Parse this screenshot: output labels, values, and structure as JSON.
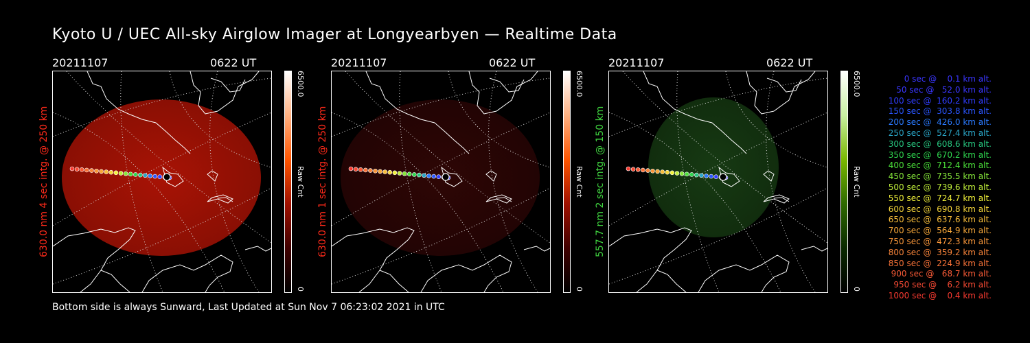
{
  "title": "Kyoto U / UEC All-sky Airglow Imager at Longyearbyen — Realtime Data",
  "footer": "Bottom side is always Sunward, Last Updated at Sun Nov  7 06:23:02 2021 in UTC",
  "panels": [
    {
      "date": "20211107",
      "time": "0622 UT",
      "label": "630.0 nm 4 sec intg. @ 250 km",
      "label_color": "#ff2a1a",
      "cbar_max": "6500.0",
      "cbar_min": "0",
      "cbar_unit": "Raw Cnt",
      "glow": "#a81305",
      "glow_edge": "#8a0f04",
      "scheme": "red"
    },
    {
      "date": "20211107",
      "time": "0622 UT",
      "label": "630.0 nm 1 sec intg. @ 250 km",
      "label_color": "#ff2a1a",
      "cbar_max": "6500.0",
      "cbar_min": "0",
      "cbar_unit": "Raw Cnt",
      "glow": "#2e0605",
      "glow_edge": "#220404",
      "scheme": "red"
    },
    {
      "date": "20211107",
      "time": "0622 UT",
      "label": "557.7 nm 2 sec intg. @ 150 km",
      "label_color": "#3fd43f",
      "cbar_max": "6500.0",
      "cbar_min": "0",
      "cbar_unit": "Raw Cnt",
      "glow": "#173a13",
      "glow_edge": "#112d0e",
      "scheme": "green"
    }
  ],
  "legend": [
    {
      "text": "0 sec @    0.1 km alt.",
      "color": "#3a36ff"
    },
    {
      "text": "50 sec @   52.0 km alt.",
      "color": "#3a36ff"
    },
    {
      "text": "100 sec @  160.2 km alt.",
      "color": "#2f3dff"
    },
    {
      "text": "150 sec @  303.8 km alt.",
      "color": "#2a55ff"
    },
    {
      "text": "200 sec @  426.0 km alt.",
      "color": "#2a7aff"
    },
    {
      "text": "250 sec @  527.4 km alt.",
      "color": "#2aa6c8"
    },
    {
      "text": "300 sec @  608.6 km alt.",
      "color": "#27c880"
    },
    {
      "text": "350 sec @  670.2 km alt.",
      "color": "#2fd64f"
    },
    {
      "text": "400 sec @  712.4 km alt.",
      "color": "#4be03a"
    },
    {
      "text": "450 sec @  735.5 km alt.",
      "color": "#86e83a"
    },
    {
      "text": "500 sec @  739.6 km alt.",
      "color": "#c0ee3a"
    },
    {
      "text": "550 sec @  724.7 km alt.",
      "color": "#f2f23a"
    },
    {
      "text": "600 sec @  690.8 km alt.",
      "color": "#f6d63a"
    },
    {
      "text": "650 sec @  637.6 km alt.",
      "color": "#f8bd3a"
    },
    {
      "text": "700 sec @  564.9 km alt.",
      "color": "#f8a83a"
    },
    {
      "text": "750 sec @  472.3 km alt.",
      "color": "#f8963a"
    },
    {
      "text": "800 sec @  359.2 km alt.",
      "color": "#f8843a"
    },
    {
      "text": "850 sec @  224.9 km alt.",
      "color": "#f87238"
    },
    {
      "text": "900 sec @   68.7 km alt.",
      "color": "#f85a36"
    },
    {
      "text": "950 sec @    6.2 km alt.",
      "color": "#f84a34"
    },
    {
      "text": "1000 sec @    0.4 km alt.",
      "color": "#f83a30"
    }
  ]
}
